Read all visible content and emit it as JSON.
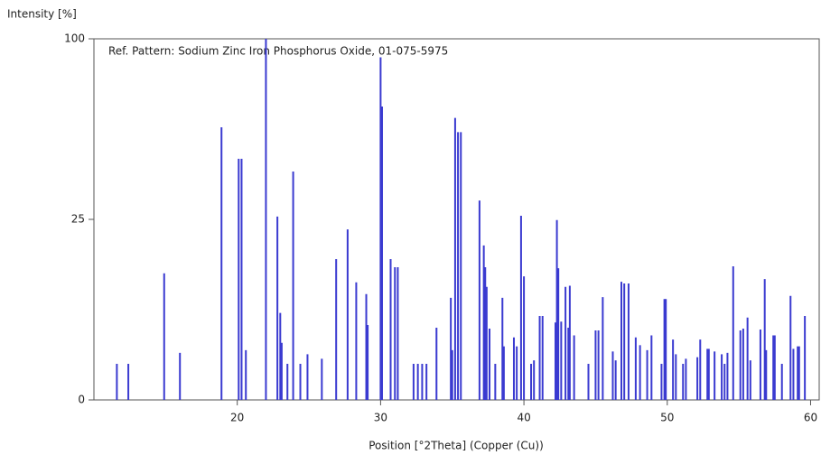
{
  "chart_data": {
    "type": "stick",
    "title": "Ref. Pattern: Sodium Zinc Iron Phosphorus Oxide, 01-075-5975",
    "x_label": "Position [°2Theta] (Copper (Cu))",
    "y_label": "Intensity [%]",
    "y_scale": "sqrt",
    "color": "#3a3ad0",
    "xlim": [
      10,
      60.6
    ],
    "xticks": [
      20,
      30,
      40,
      50,
      60
    ],
    "ylim": [
      0,
      100
    ],
    "yticks": [
      0,
      25,
      100
    ],
    "x": [
      11.6,
      12.4,
      14.9,
      16.0,
      18.9,
      20.1,
      20.3,
      20.6,
      22.0,
      22.8,
      23.0,
      23.1,
      23.5,
      23.9,
      24.4,
      24.9,
      25.9,
      26.9,
      27.7,
      28.3,
      29.0,
      29.1,
      30.0,
      30.1,
      30.7,
      31.0,
      31.2,
      32.3,
      32.6,
      32.9,
      33.2,
      33.9,
      34.9,
      35.0,
      35.2,
      35.4,
      35.6,
      36.9,
      37.2,
      37.3,
      37.4,
      37.6,
      38.0,
      38.5,
      38.6,
      39.3,
      39.5,
      39.8,
      40.0,
      40.5,
      40.7,
      41.1,
      41.3,
      42.2,
      42.3,
      42.4,
      42.6,
      42.9,
      43.1,
      43.2,
      43.5,
      44.5,
      45.0,
      45.2,
      45.5,
      46.2,
      46.4,
      46.8,
      47.0,
      47.3,
      47.8,
      48.1,
      48.6,
      48.9,
      49.6,
      49.8,
      49.9,
      50.4,
      50.6,
      51.1,
      51.3,
      52.1,
      52.3,
      52.8,
      52.9,
      53.3,
      53.8,
      54.0,
      54.2,
      54.6,
      55.1,
      55.3,
      55.6,
      55.8,
      56.5,
      56.8,
      56.9,
      57.4,
      57.5,
      58.0,
      58.6,
      58.8,
      59.1,
      59.2,
      59.6
    ],
    "values": [
      1,
      1,
      12.3,
      1.7,
      57,
      44.6,
      44.6,
      1.9,
      100,
      25.8,
      5.8,
      2.5,
      1,
      40,
      1,
      1.6,
      1.3,
      15.2,
      22.3,
      10.6,
      8.6,
      4.3,
      90,
      66,
      15.2,
      13.5,
      13.5,
      1,
      1,
      1,
      1,
      4,
      8,
      1.9,
      61,
      55,
      55,
      30.5,
      18.3,
      13.5,
      9.8,
      3.9,
      1,
      8,
      2.2,
      3,
      2.2,
      26,
      11.7,
      1,
      1.2,
      5.4,
      5.4,
      4.6,
      24.8,
      13.3,
      4.7,
      9.8,
      4,
      10,
      3.2,
      1,
      3.7,
      3.7,
      8.1,
      1.8,
      1.2,
      10.7,
      10.4,
      10.4,
      3,
      2.3,
      1.9,
      3.2,
      1,
      7.8,
      7.8,
      2.8,
      1.6,
      1,
      1.3,
      1.4,
      2.8,
      2,
      2,
      1.8,
      1.6,
      1,
      1.7,
      13.7,
      3.7,
      3.9,
      5.2,
      1.2,
      3.8,
      11.2,
      1.9,
      3.2,
      3.2,
      1,
      8.3,
      2,
      2.2,
      2.2,
      5.4
    ]
  }
}
